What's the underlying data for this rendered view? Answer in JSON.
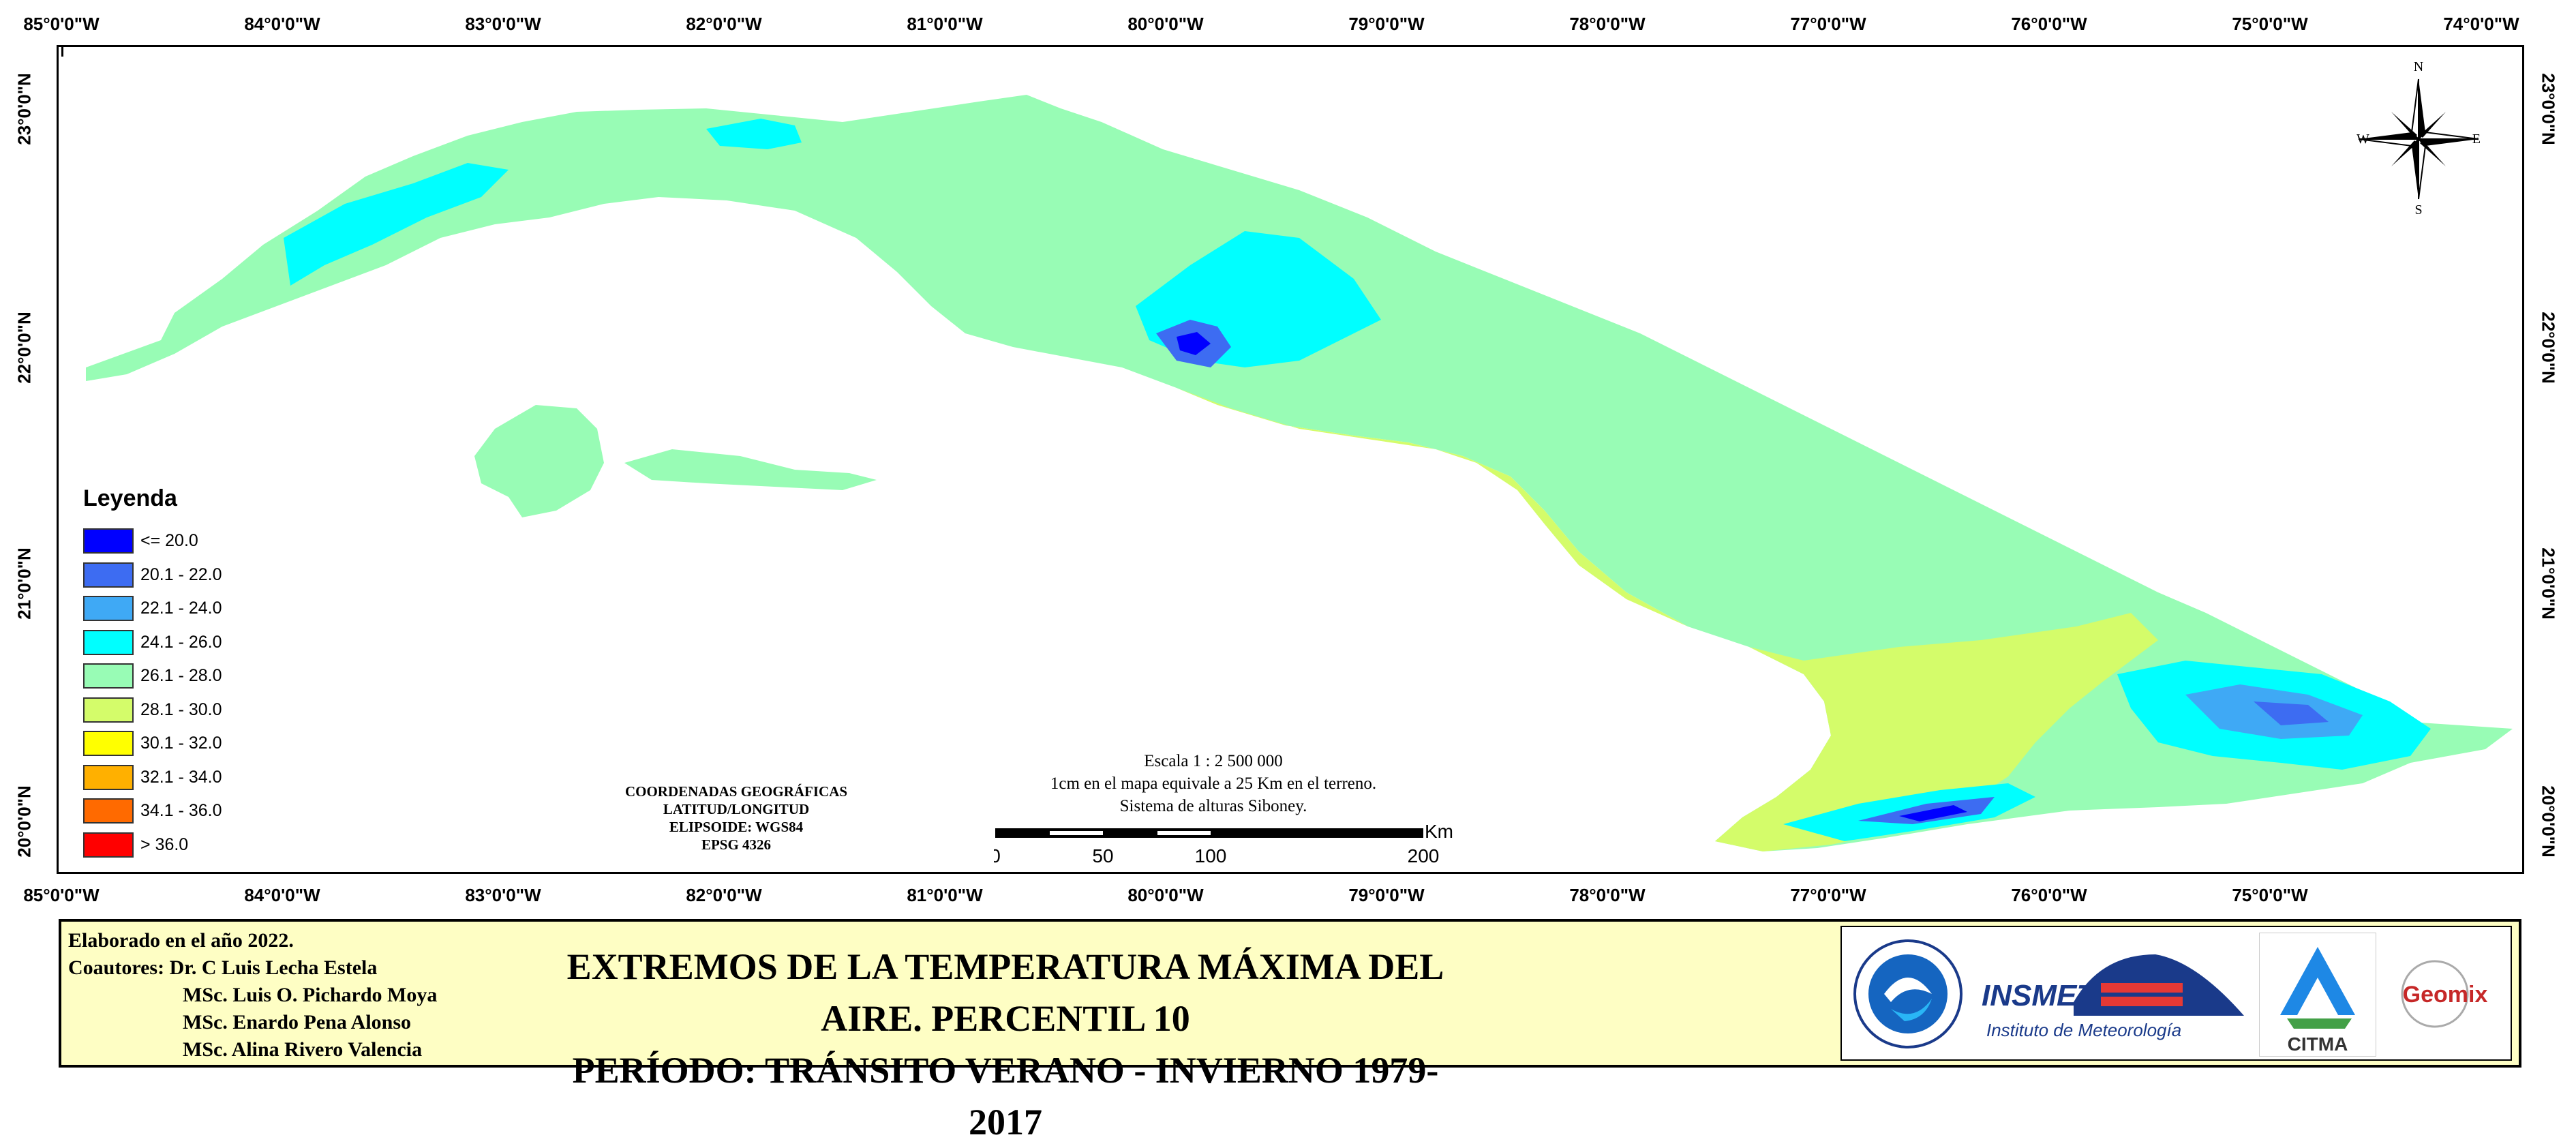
{
  "map": {
    "longitude_labels": [
      "85°0'0\"W",
      "84°0'0\"W",
      "83°0'0\"W",
      "82°0'0\"W",
      "81°0'0\"W",
      "80°0'0\"W",
      "79°0'0\"W",
      "78°0'0\"W",
      "77°0'0\"W",
      "76°0'0\"W",
      "75°0'0\"W",
      "74°0'0\"W"
    ],
    "latitude_labels": [
      "23°0'0\"N",
      "22°0'0\"N",
      "21°0'0\"N",
      "20°0'0\"N"
    ],
    "compass": {
      "n": "N",
      "s": "S",
      "e": "E",
      "w": "W"
    }
  },
  "legend": {
    "title": "Leyenda",
    "items": [
      {
        "label": "<= 20.0",
        "color": "#0000ff"
      },
      {
        "label": "20.1 - 22.0",
        "color": "#3d6cf2"
      },
      {
        "label": "22.1 - 24.0",
        "color": "#3fa9f5"
      },
      {
        "label": "24.1 - 26.0",
        "color": "#00ffff"
      },
      {
        "label": "26.1 - 28.0",
        "color": "#98fcb5"
      },
      {
        "label": "28.1 - 30.0",
        "color": "#d4fc6a"
      },
      {
        "label": "30.1 - 32.0",
        "color": "#ffff00"
      },
      {
        "label": "32.1 - 34.0",
        "color": "#ffb000"
      },
      {
        "label": "34.1 - 36.0",
        "color": "#ff6a00"
      },
      {
        "label": "> 36.0",
        "color": "#ff0000"
      }
    ]
  },
  "coords_info": {
    "line1": "COORDENADAS GEOGRÁFICAS",
    "line2": "LATITUD/LONGITUD",
    "line3": "ELIPSOIDE: WGS84",
    "line4": "EPSG 4326"
  },
  "scale": {
    "line1": "Escala 1 : 2 500 000",
    "line2": "1cm en el mapa equivale a 25 Km en el terreno.",
    "line3": "Sistema de alturas Siboney.",
    "unit": "Km",
    "ticks": [
      "0",
      "50",
      "100",
      "200"
    ]
  },
  "credits": {
    "line1": "Elaborado en el año 2022.",
    "line2": "Coautores: Dr. C Luis Lecha Estela",
    "line3": "MSc. Luis O. Pichardo Moya",
    "line4": "MSc. Enardo Pena Alonso",
    "line5": "MSc. Alina Rivero Valencia"
  },
  "title": {
    "line1": "EXTREMOS DE LA TEMPERATURA MÁXIMA DEL AIRE. PERCENTIL 10",
    "line2": "PERÍODO: TRÁNSITO VERANO - INVIERNO 1979-2017"
  },
  "logos": {
    "insmet_name": "INSMET",
    "insmet_sub": "Instituto de Meteorología",
    "citma": "CITMA",
    "geomix": "Geomix"
  }
}
